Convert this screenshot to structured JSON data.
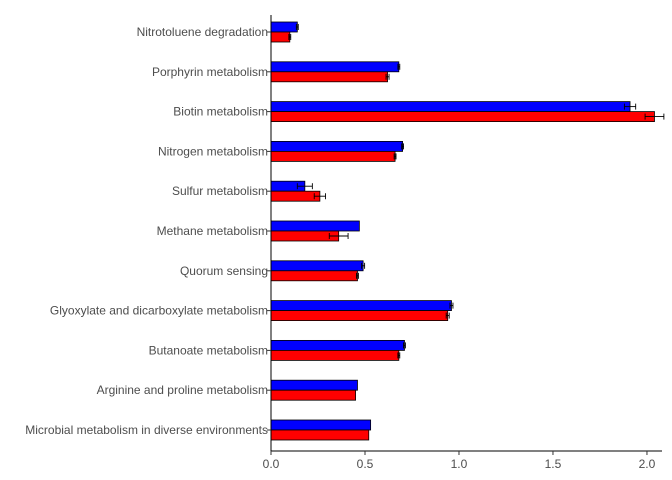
{
  "chart_data": {
    "type": "bar",
    "orientation": "horizontal",
    "title": "",
    "xlabel": "",
    "ylabel": "",
    "xlim": [
      0,
      2.08
    ],
    "x_ticks": [
      0,
      0.5,
      1,
      1.5,
      2
    ],
    "x_tick_labels": [
      "0.0",
      "0.5",
      "1.0",
      "1.5",
      "2.0"
    ],
    "grid": false,
    "legend": "none",
    "categories": [
      "Nitrotoluene degradation",
      "Porphyrin metabolism",
      "Biotin metabolism",
      "Nitrogen metabolism",
      "Sulfur metabolism",
      "Methane metabolism",
      "Quorum sensing",
      "Glyoxylate and dicarboxylate metabolism",
      "Butanoate metabolism",
      "Arginine and proline metabolism",
      "Microbial metabolism in diverse environments"
    ],
    "series": [
      {
        "color": "#0000ff",
        "values": [
          0.14,
          0.68,
          1.91,
          0.7,
          0.18,
          0.47,
          0.49,
          0.96,
          0.71,
          0.46,
          0.53
        ],
        "errors": [
          0.005,
          0.005,
          0.03,
          0.005,
          0.04,
          0.0,
          0.008,
          0.008,
          0.005,
          0.0,
          0.0
        ]
      },
      {
        "color": "#ff0000",
        "values": [
          0.1,
          0.62,
          2.04,
          0.66,
          0.26,
          0.36,
          0.46,
          0.94,
          0.68,
          0.45,
          0.52
        ],
        "errors": [
          0.005,
          0.008,
          0.05,
          0.005,
          0.03,
          0.05,
          0.005,
          0.008,
          0.005,
          0.0,
          0.0
        ]
      }
    ]
  }
}
